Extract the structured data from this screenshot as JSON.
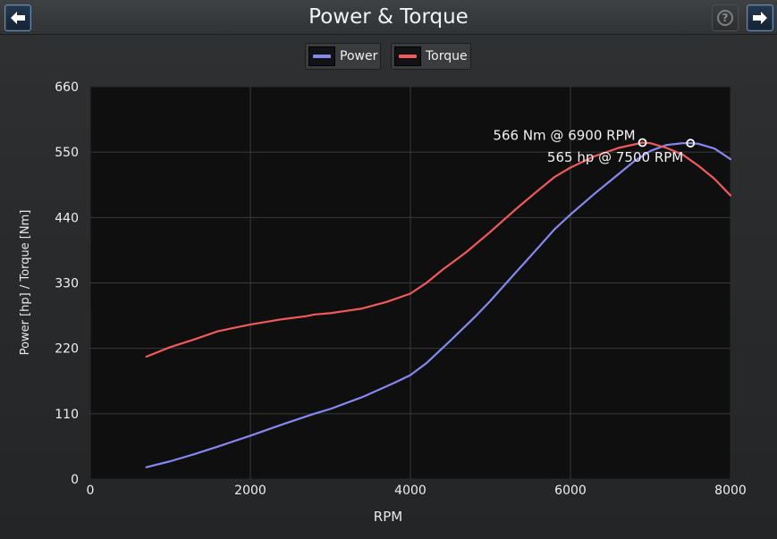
{
  "window": {
    "title": "Power & Torque",
    "back_icon": "arrow-left-icon",
    "forward_icon": "arrow-right-icon",
    "help_icon": "help-icon",
    "help_glyph": "?"
  },
  "colors": {
    "power": "#8787f0",
    "torque": "#f05a5a",
    "plot_bg": "#0f0f10",
    "grid": "#3a3a3c"
  },
  "chart_data": {
    "type": "line",
    "title": "",
    "xlabel": "RPM",
    "ylabel": "Power [hp] / Torque [Nm]",
    "xlim": [
      0,
      8000
    ],
    "ylim": [
      0,
      660
    ],
    "xticks": [
      0,
      2000,
      4000,
      6000,
      8000
    ],
    "yticks": [
      0,
      110,
      220,
      330,
      440,
      550,
      660
    ],
    "grid": true,
    "legend_placement": "top-center",
    "series": [
      {
        "name": "Power",
        "color": "#8787f0",
        "x": [
          700,
          1000,
          1300,
          1600,
          2000,
          2400,
          2800,
          3000,
          3400,
          3800,
          4000,
          4200,
          4500,
          4800,
          5000,
          5300,
          5500,
          5800,
          6000,
          6300,
          6500,
          6800,
          7000,
          7200,
          7400,
          7500,
          7600,
          7800,
          8000
        ],
        "y": [
          20,
          30,
          42,
          55,
          73,
          92,
          110,
          118,
          138,
          162,
          175,
          195,
          233,
          272,
          300,
          345,
          375,
          420,
          445,
          480,
          502,
          535,
          552,
          562,
          565,
          565,
          564,
          556,
          538
        ]
      },
      {
        "name": "Torque",
        "color": "#f05a5a",
        "x": [
          700,
          1000,
          1300,
          1600,
          2000,
          2400,
          2700,
          2800,
          3000,
          3400,
          3700,
          4000,
          4200,
          4400,
          4700,
          5000,
          5300,
          5600,
          5800,
          6000,
          6300,
          6600,
          6900,
          7000,
          7200,
          7400,
          7600,
          7800,
          8000
        ],
        "y": [
          206,
          222,
          235,
          249,
          260,
          269,
          274,
          277,
          279,
          287,
          298,
          312,
          330,
          352,
          382,
          416,
          452,
          486,
          508,
          524,
          543,
          557,
          566,
          565,
          557,
          546,
          527,
          505,
          477
        ]
      }
    ],
    "annotations": [
      {
        "text": "566 Nm @ 6900 RPM",
        "x": 6900,
        "y": 566,
        "series": "Torque"
      },
      {
        "text": "565 hp @ 7500 RPM",
        "x": 7500,
        "y": 565,
        "series": "Power"
      }
    ]
  }
}
